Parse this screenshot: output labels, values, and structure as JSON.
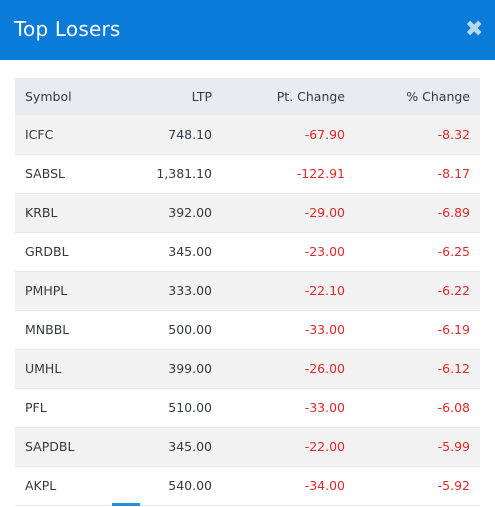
{
  "header": {
    "title": "Top Losers",
    "close_glyph": "✖"
  },
  "table": {
    "columns": [
      "Symbol",
      "LTP",
      "Pt. Change",
      "% Change"
    ],
    "rows": [
      {
        "symbol": "ICFC",
        "ltp": "748.10",
        "pt_change": "-67.90",
        "pct_change": "-8.32"
      },
      {
        "symbol": "SABSL",
        "ltp": "1,381.10",
        "pt_change": "-122.91",
        "pct_change": "-8.17"
      },
      {
        "symbol": "KRBL",
        "ltp": "392.00",
        "pt_change": "-29.00",
        "pct_change": "-6.89"
      },
      {
        "symbol": "GRDBL",
        "ltp": "345.00",
        "pt_change": "-23.00",
        "pct_change": "-6.25"
      },
      {
        "symbol": "PMHPL",
        "ltp": "333.00",
        "pt_change": "-22.10",
        "pct_change": "-6.22"
      },
      {
        "symbol": "MNBBL",
        "ltp": "500.00",
        "pt_change": "-33.00",
        "pct_change": "-6.19"
      },
      {
        "symbol": "UMHL",
        "ltp": "399.00",
        "pt_change": "-26.00",
        "pct_change": "-6.12"
      },
      {
        "symbol": "PFL",
        "ltp": "510.00",
        "pt_change": "-33.00",
        "pct_change": "-6.08"
      },
      {
        "symbol": "SAPDBL",
        "ltp": "345.00",
        "pt_change": "-22.00",
        "pct_change": "-5.99"
      },
      {
        "symbol": "AKPL",
        "ltp": "540.00",
        "pt_change": "-34.00",
        "pct_change": "-5.92"
      }
    ]
  },
  "colors": {
    "header_bg": "#0a7bd8",
    "negative": "#e2282a",
    "table_header_bg": "#e8ecf0"
  }
}
